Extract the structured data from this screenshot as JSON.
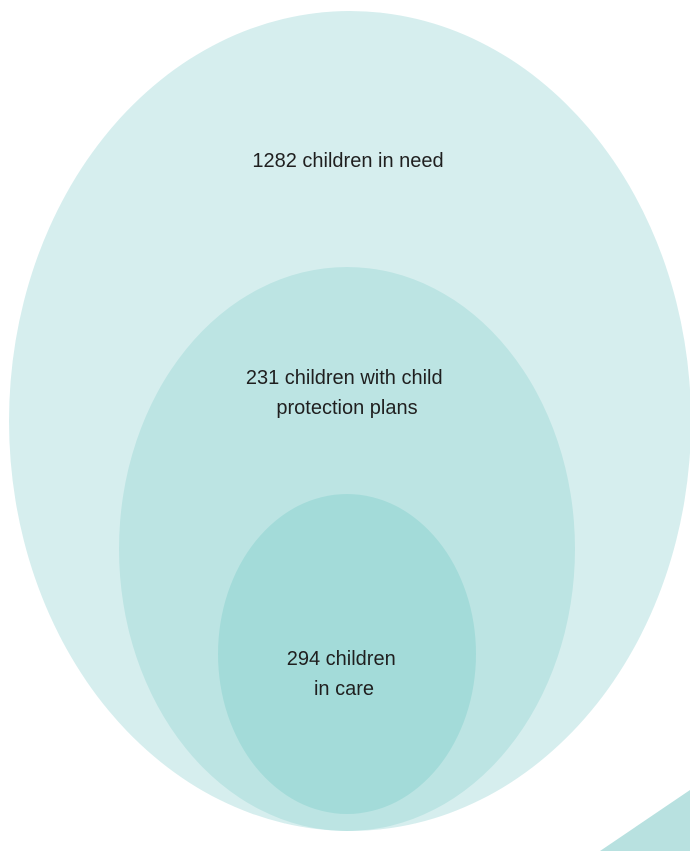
{
  "diagram": {
    "sets": [
      {
        "name": "children-in-need",
        "lines": [
          "1282 children in need"
        ],
        "color": "#d6eeee"
      },
      {
        "name": "child-protection-plans",
        "lines": [
          "231 children with child",
          "protection plans"
        ],
        "color": "#bce4e3"
      },
      {
        "name": "children-in-care",
        "lines": [
          "294 children",
          "in care"
        ],
        "color": "#a3dbd9"
      }
    ],
    "corner_shape_color": "#b8e1e0"
  }
}
